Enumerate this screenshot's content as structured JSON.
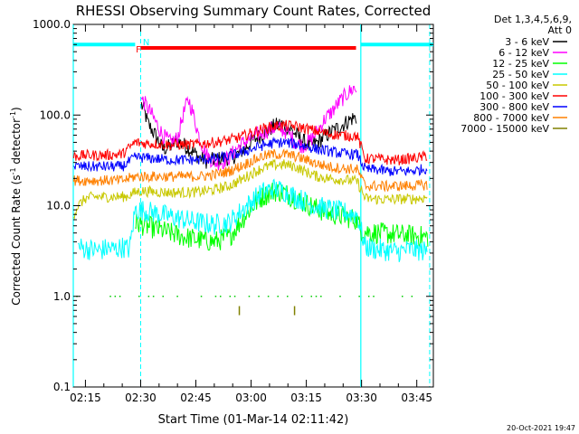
{
  "chart_data": {
    "type": "line",
    "title": "RHESSI Observing Summary Count Rates, Corrected",
    "xlabel": "Start Time (01-Mar-14 02:11:42)",
    "ylabel": "Corrected Count Rate (s",
    "ylabel_sup": "-1",
    "ylabel_mid": " detector",
    "ylabel_end": ")",
    "yscale": "log",
    "xlim": [
      131,
      480
    ],
    "ylim": [
      0.1,
      1000
    ],
    "x_unit": "minutes after 00:00 UT, 01-Mar-14",
    "xticks": [
      {
        "v": 135,
        "label": "02:15"
      },
      {
        "v": 150,
        "label": "02:30"
      },
      {
        "v": 165,
        "label": "02:45"
      },
      {
        "v": 180,
        "label": "03:00"
      },
      {
        "v": 195,
        "label": "03:15"
      },
      {
        "v": 210,
        "label": "03:30"
      },
      {
        "v": 225,
        "label": "03:45"
      }
    ],
    "yticks": [
      {
        "v": 0.1,
        "label": "0.1"
      },
      {
        "v": 1.0,
        "label": "1.0"
      },
      {
        "v": 10.0,
        "label": "10.0"
      },
      {
        "v": 100.0,
        "label": "100.0"
      },
      {
        "v": 1000.0,
        "label": "1000.0"
      }
    ],
    "legend": {
      "placement": "right",
      "header1": "Det 1,3,4,5,6,9,",
      "header2": "Att 0"
    },
    "footer": "20-Oct-2021 19:47",
    "xlim_minutes": [
      131.7,
      229.5
    ],
    "flags": [
      {
        "label": "N",
        "color": "#00ffff",
        "y": 600,
        "segments": [
          [
            131.7,
            148.5
          ],
          [
            209.7,
            229.5
          ]
        ]
      },
      {
        "label": "F",
        "color": "#ff0000",
        "y": 550,
        "segments": [
          [
            150.0,
            208.5
          ]
        ]
      }
    ],
    "vlines_solid": [
      131.7,
      209.8
    ],
    "vlines_dashed": [
      150.0,
      228.5
    ],
    "series": [
      {
        "name": "3 - 6 keV",
        "color": "#000000",
        "x": [
          150.2,
          151,
          152,
          154,
          156,
          158,
          160,
          162,
          164,
          166,
          168,
          170,
          172,
          174,
          176,
          178,
          180,
          182,
          184,
          186,
          188,
          190,
          192,
          194,
          196,
          198,
          200,
          202,
          204,
          206,
          207.5,
          208.8
        ],
        "y": [
          130,
          110,
          80,
          60,
          42,
          45,
          52,
          46,
          40,
          34,
          31,
          32,
          33,
          34,
          36,
          42,
          50,
          58,
          66,
          74,
          80,
          74,
          62,
          52,
          46,
          50,
          58,
          66,
          74,
          84,
          92,
          95
        ]
      },
      {
        "name": "6 - 12 keV",
        "color": "#ff00ff",
        "x": [
          150.2,
          152,
          154,
          156,
          158,
          160,
          161.5,
          163,
          164.5,
          166,
          168,
          170,
          172,
          174,
          176,
          178,
          180,
          182,
          184,
          186,
          188,
          190,
          192,
          194,
          196,
          198,
          200,
          202,
          204,
          206,
          208,
          208.8
        ],
        "y": [
          150,
          120,
          85,
          60,
          50,
          55,
          100,
          150,
          95,
          55,
          36,
          30,
          30,
          34,
          42,
          50,
          55,
          62,
          66,
          72,
          70,
          64,
          50,
          46,
          52,
          66,
          90,
          110,
          140,
          170,
          200,
          180
        ]
      },
      {
        "name": "12 - 25 keV",
        "color": "#00ff00",
        "x": [
          148.5,
          150,
          154,
          158,
          162,
          166,
          170,
          174,
          177,
          180,
          183,
          186,
          189,
          192,
          195,
          198,
          201,
          204,
          207,
          208.8,
          209.7,
          211,
          214,
          217,
          220,
          223,
          226,
          228
        ],
        "y": [
          6.5,
          6.2,
          5.6,
          5.0,
          4.5,
          4.2,
          4.0,
          4.5,
          6.5,
          9.5,
          12.5,
          14.5,
          14.0,
          12.0,
          10.5,
          9.2,
          8.2,
          7.8,
          7.3,
          7.0,
          5.5,
          5.2,
          5.0,
          4.9,
          4.8,
          4.7,
          4.6,
          4.5
        ]
      },
      {
        "name": "25 - 50 keV",
        "color": "#00ffff",
        "x": [
          133,
          136,
          139,
          141,
          143,
          145,
          147,
          148.5,
          150,
          154,
          158,
          162,
          166,
          170,
          174,
          177,
          180,
          183,
          186,
          189,
          192,
          195,
          198,
          201,
          204,
          207,
          208.8,
          211,
          214,
          217,
          220,
          223,
          226,
          228
        ],
        "y": [
          3.5,
          3.3,
          3.2,
          3.4,
          3.3,
          3.5,
          3.3,
          9.0,
          9.0,
          8.3,
          7.6,
          7.0,
          6.5,
          6.2,
          6.5,
          8.5,
          11.0,
          14.0,
          15.5,
          14.5,
          12.5,
          11.0,
          9.8,
          9.2,
          8.6,
          8.2,
          8.0,
          3.5,
          3.3,
          3.2,
          3.1,
          3.3,
          3.2,
          3.1
        ]
      },
      {
        "name": "50 - 100 keV",
        "color": "#c8c800",
        "x": [
          131.8,
          133,
          135,
          137,
          140,
          143,
          146,
          148.5,
          150,
          154,
          158,
          162,
          166,
          170,
          174,
          177,
          180,
          183,
          186,
          189,
          192,
          195,
          198,
          201,
          204,
          207,
          208.8,
          211,
          214,
          217,
          220,
          223,
          226,
          228
        ],
        "y": [
          8.0,
          10.0,
          12.0,
          12.5,
          12.5,
          12.5,
          12.6,
          14.0,
          14.5,
          14.2,
          14.0,
          14.0,
          14.2,
          15.0,
          16.5,
          19.0,
          22.5,
          26.0,
          28.0,
          28.5,
          27.0,
          23.5,
          21.0,
          20.0,
          19.5,
          19.0,
          18.5,
          12.0,
          11.8,
          11.7,
          11.8,
          11.9,
          12.0,
          12.5
        ]
      },
      {
        "name": "100 - 300 keV",
        "color": "#ff0000",
        "x": [
          131.8,
          135,
          140,
          145,
          148.5,
          150,
          154,
          158,
          162,
          166,
          170,
          174,
          177,
          180,
          183,
          186,
          189,
          192,
          195,
          198,
          201,
          204,
          207,
          208.8,
          211,
          214,
          217,
          220,
          223,
          226,
          228
        ],
        "y": [
          35,
          36,
          36,
          37,
          50,
          49,
          48,
          47,
          47,
          48,
          50,
          53,
          57,
          63,
          70,
          75,
          77,
          75,
          71,
          66,
          62,
          60,
          59,
          59,
          33,
          33,
          32,
          32,
          33,
          34,
          36
        ]
      },
      {
        "name": "300 - 800 keV",
        "color": "#0000ff",
        "x": [
          131.8,
          135,
          140,
          145,
          148.5,
          150,
          154,
          158,
          162,
          166,
          170,
          174,
          177,
          180,
          183,
          186,
          189,
          192,
          195,
          198,
          201,
          204,
          207,
          208.8,
          211,
          214,
          217,
          220,
          223,
          226,
          228
        ],
        "y": [
          27,
          27,
          27,
          27,
          34,
          34,
          33,
          32,
          32,
          32,
          33,
          35,
          38,
          42,
          46,
          49,
          50,
          48,
          45,
          42,
          40,
          38,
          37,
          37,
          25,
          25,
          24,
          24,
          24,
          25,
          26
        ]
      },
      {
        "name": "800 - 7000 keV",
        "color": "#ff8000",
        "x": [
          131.8,
          135,
          140,
          145,
          148.5,
          150,
          154,
          158,
          162,
          166,
          170,
          174,
          177,
          180,
          183,
          186,
          189,
          192,
          195,
          198,
          201,
          204,
          207,
          208.8,
          211,
          214,
          217,
          220,
          223,
          226,
          228
        ],
        "y": [
          19,
          19,
          19,
          19,
          21,
          21,
          21,
          21,
          21,
          21,
          22,
          24,
          27,
          31,
          35,
          37,
          37,
          35,
          32,
          29,
          27,
          26,
          25.5,
          25,
          16.5,
          16.5,
          16.4,
          16.5,
          16.6,
          16.8,
          17
        ]
      },
      {
        "name": "7000 - 15000 keV",
        "color": "#808000",
        "x": [
          132.5,
          145,
          145.8,
          150,
          164,
          174,
          176,
          183,
          185,
          187,
          195,
          210,
          224
        ],
        "y": [
          1.0,
          1.0,
          1.0,
          1.0,
          1.0,
          1.0,
          1.0,
          1.0,
          1.0,
          1.0,
          1.0,
          1.0,
          1.0
        ],
        "spikes": [
          176.8,
          191.8
        ]
      }
    ]
  }
}
